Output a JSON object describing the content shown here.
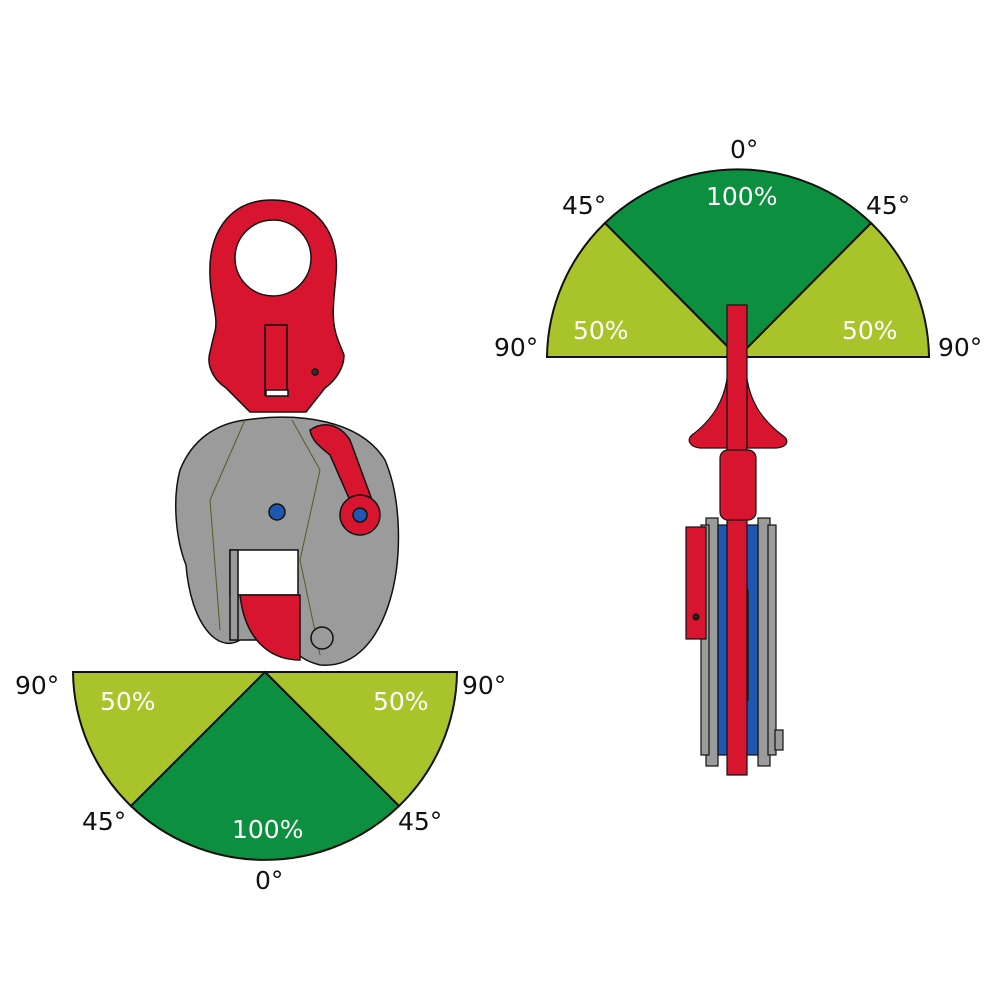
{
  "colors": {
    "full_capacity": "#0c8f3e",
    "half_capacity": "#a9c32a",
    "clamp_red": "#d8152e",
    "clamp_grey": "#9b9b9b",
    "pin_blue": "#1f56b0"
  },
  "left_diagram": {
    "angle_labels": {
      "left_90": "90°",
      "right_90": "90°",
      "left_45": "45°",
      "right_45": "45°",
      "bottom_0": "0°"
    },
    "capacity_labels": {
      "left": "50%",
      "right": "50%",
      "center": "100%"
    }
  },
  "right_diagram": {
    "angle_labels": {
      "left_90": "90°",
      "right_90": "90°",
      "left_45": "45°",
      "right_45": "45°",
      "top_0": "0°"
    },
    "capacity_labels": {
      "left": "50%",
      "right": "50%",
      "center": "100%"
    }
  }
}
